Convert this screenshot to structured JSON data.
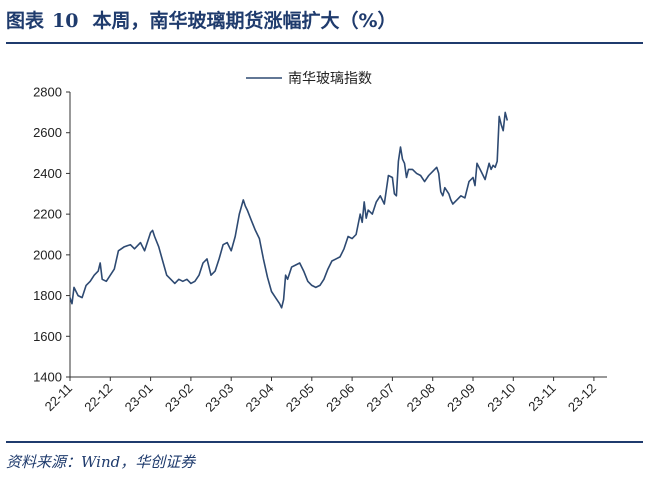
{
  "header": {
    "figure_label": "图表",
    "figure_number": "10",
    "title": "本周，南华玻璃期货涨幅扩大（%）"
  },
  "source_text": "资料来源：Wind，华创证券",
  "colors": {
    "header": "#1f3b6d",
    "series": "#2e4a72",
    "axis": "#333333",
    "text": "#222222"
  },
  "chart_data": {
    "type": "line",
    "title": "",
    "xlabel": "",
    "ylabel": "",
    "ylim": [
      1400,
      2800
    ],
    "yticks": [
      1400,
      1600,
      1800,
      2000,
      2200,
      2400,
      2600,
      2800
    ],
    "grid": false,
    "legend_position": "top-center",
    "x_ticks": [
      "22-11",
      "22-12",
      "23-01",
      "23-02",
      "23-03",
      "23-04",
      "23-05",
      "23-06",
      "23-07",
      "23-08",
      "23-09",
      "23-10",
      "23-11",
      "23-12"
    ],
    "series": [
      {
        "name": "南华玻璃指数",
        "color": "#2e4a72",
        "points": [
          [
            0.0,
            1790
          ],
          [
            0.05,
            1760
          ],
          [
            0.1,
            1840
          ],
          [
            0.2,
            1800
          ],
          [
            0.3,
            1790
          ],
          [
            0.4,
            1850
          ],
          [
            0.5,
            1870
          ],
          [
            0.6,
            1900
          ],
          [
            0.7,
            1920
          ],
          [
            0.75,
            1960
          ],
          [
            0.8,
            1880
          ],
          [
            0.9,
            1870
          ],
          [
            1.0,
            1900
          ],
          [
            1.1,
            1930
          ],
          [
            1.2,
            2020
          ],
          [
            1.35,
            2040
          ],
          [
            1.5,
            2050
          ],
          [
            1.6,
            2030
          ],
          [
            1.75,
            2060
          ],
          [
            1.85,
            2020
          ],
          [
            1.95,
            2080
          ],
          [
            2.0,
            2110
          ],
          [
            2.05,
            2120
          ],
          [
            2.1,
            2090
          ],
          [
            2.2,
            2040
          ],
          [
            2.3,
            1970
          ],
          [
            2.4,
            1900
          ],
          [
            2.5,
            1880
          ],
          [
            2.6,
            1860
          ],
          [
            2.7,
            1880
          ],
          [
            2.8,
            1870
          ],
          [
            2.9,
            1880
          ],
          [
            3.0,
            1860
          ],
          [
            3.1,
            1870
          ],
          [
            3.2,
            1900
          ],
          [
            3.3,
            1960
          ],
          [
            3.4,
            1980
          ],
          [
            3.5,
            1900
          ],
          [
            3.6,
            1920
          ],
          [
            3.7,
            1980
          ],
          [
            3.8,
            2050
          ],
          [
            3.9,
            2060
          ],
          [
            4.0,
            2020
          ],
          [
            4.1,
            2090
          ],
          [
            4.2,
            2200
          ],
          [
            4.3,
            2270
          ],
          [
            4.35,
            2240
          ],
          [
            4.4,
            2220
          ],
          [
            4.5,
            2170
          ],
          [
            4.6,
            2120
          ],
          [
            4.7,
            2080
          ],
          [
            4.8,
            1980
          ],
          [
            4.9,
            1890
          ],
          [
            5.0,
            1820
          ],
          [
            5.1,
            1790
          ],
          [
            5.2,
            1760
          ],
          [
            5.25,
            1740
          ],
          [
            5.3,
            1780
          ],
          [
            5.35,
            1900
          ],
          [
            5.4,
            1880
          ],
          [
            5.5,
            1940
          ],
          [
            5.6,
            1950
          ],
          [
            5.7,
            1960
          ],
          [
            5.8,
            1920
          ],
          [
            5.9,
            1870
          ],
          [
            6.0,
            1850
          ],
          [
            6.1,
            1840
          ],
          [
            6.2,
            1850
          ],
          [
            6.3,
            1880
          ],
          [
            6.4,
            1930
          ],
          [
            6.5,
            1970
          ],
          [
            6.6,
            1980
          ],
          [
            6.7,
            1990
          ],
          [
            6.8,
            2030
          ],
          [
            6.9,
            2090
          ],
          [
            7.0,
            2080
          ],
          [
            7.1,
            2100
          ],
          [
            7.2,
            2200
          ],
          [
            7.25,
            2160
          ],
          [
            7.3,
            2260
          ],
          [
            7.35,
            2180
          ],
          [
            7.4,
            2220
          ],
          [
            7.5,
            2200
          ],
          [
            7.6,
            2260
          ],
          [
            7.7,
            2290
          ],
          [
            7.8,
            2250
          ],
          [
            7.9,
            2390
          ],
          [
            8.0,
            2380
          ],
          [
            8.05,
            2300
          ],
          [
            8.1,
            2290
          ],
          [
            8.15,
            2460
          ],
          [
            8.2,
            2530
          ],
          [
            8.25,
            2470
          ],
          [
            8.3,
            2450
          ],
          [
            8.35,
            2380
          ],
          [
            8.4,
            2420
          ],
          [
            8.5,
            2420
          ],
          [
            8.6,
            2400
          ],
          [
            8.7,
            2390
          ],
          [
            8.8,
            2360
          ],
          [
            8.9,
            2390
          ],
          [
            9.0,
            2410
          ],
          [
            9.1,
            2430
          ],
          [
            9.15,
            2400
          ],
          [
            9.2,
            2310
          ],
          [
            9.25,
            2290
          ],
          [
            9.3,
            2330
          ],
          [
            9.4,
            2300
          ],
          [
            9.45,
            2270
          ],
          [
            9.5,
            2250
          ],
          [
            9.6,
            2270
          ],
          [
            9.7,
            2290
          ],
          [
            9.8,
            2280
          ],
          [
            9.9,
            2360
          ],
          [
            10.0,
            2380
          ],
          [
            10.05,
            2340
          ],
          [
            10.1,
            2450
          ],
          [
            10.2,
            2410
          ],
          [
            10.3,
            2370
          ],
          [
            10.4,
            2450
          ],
          [
            10.45,
            2420
          ],
          [
            10.5,
            2440
          ],
          [
            10.55,
            2430
          ],
          [
            10.6,
            2460
          ],
          [
            10.65,
            2680
          ],
          [
            10.7,
            2640
          ],
          [
            10.75,
            2610
          ],
          [
            10.8,
            2700
          ],
          [
            10.85,
            2660
          ]
        ]
      }
    ]
  }
}
